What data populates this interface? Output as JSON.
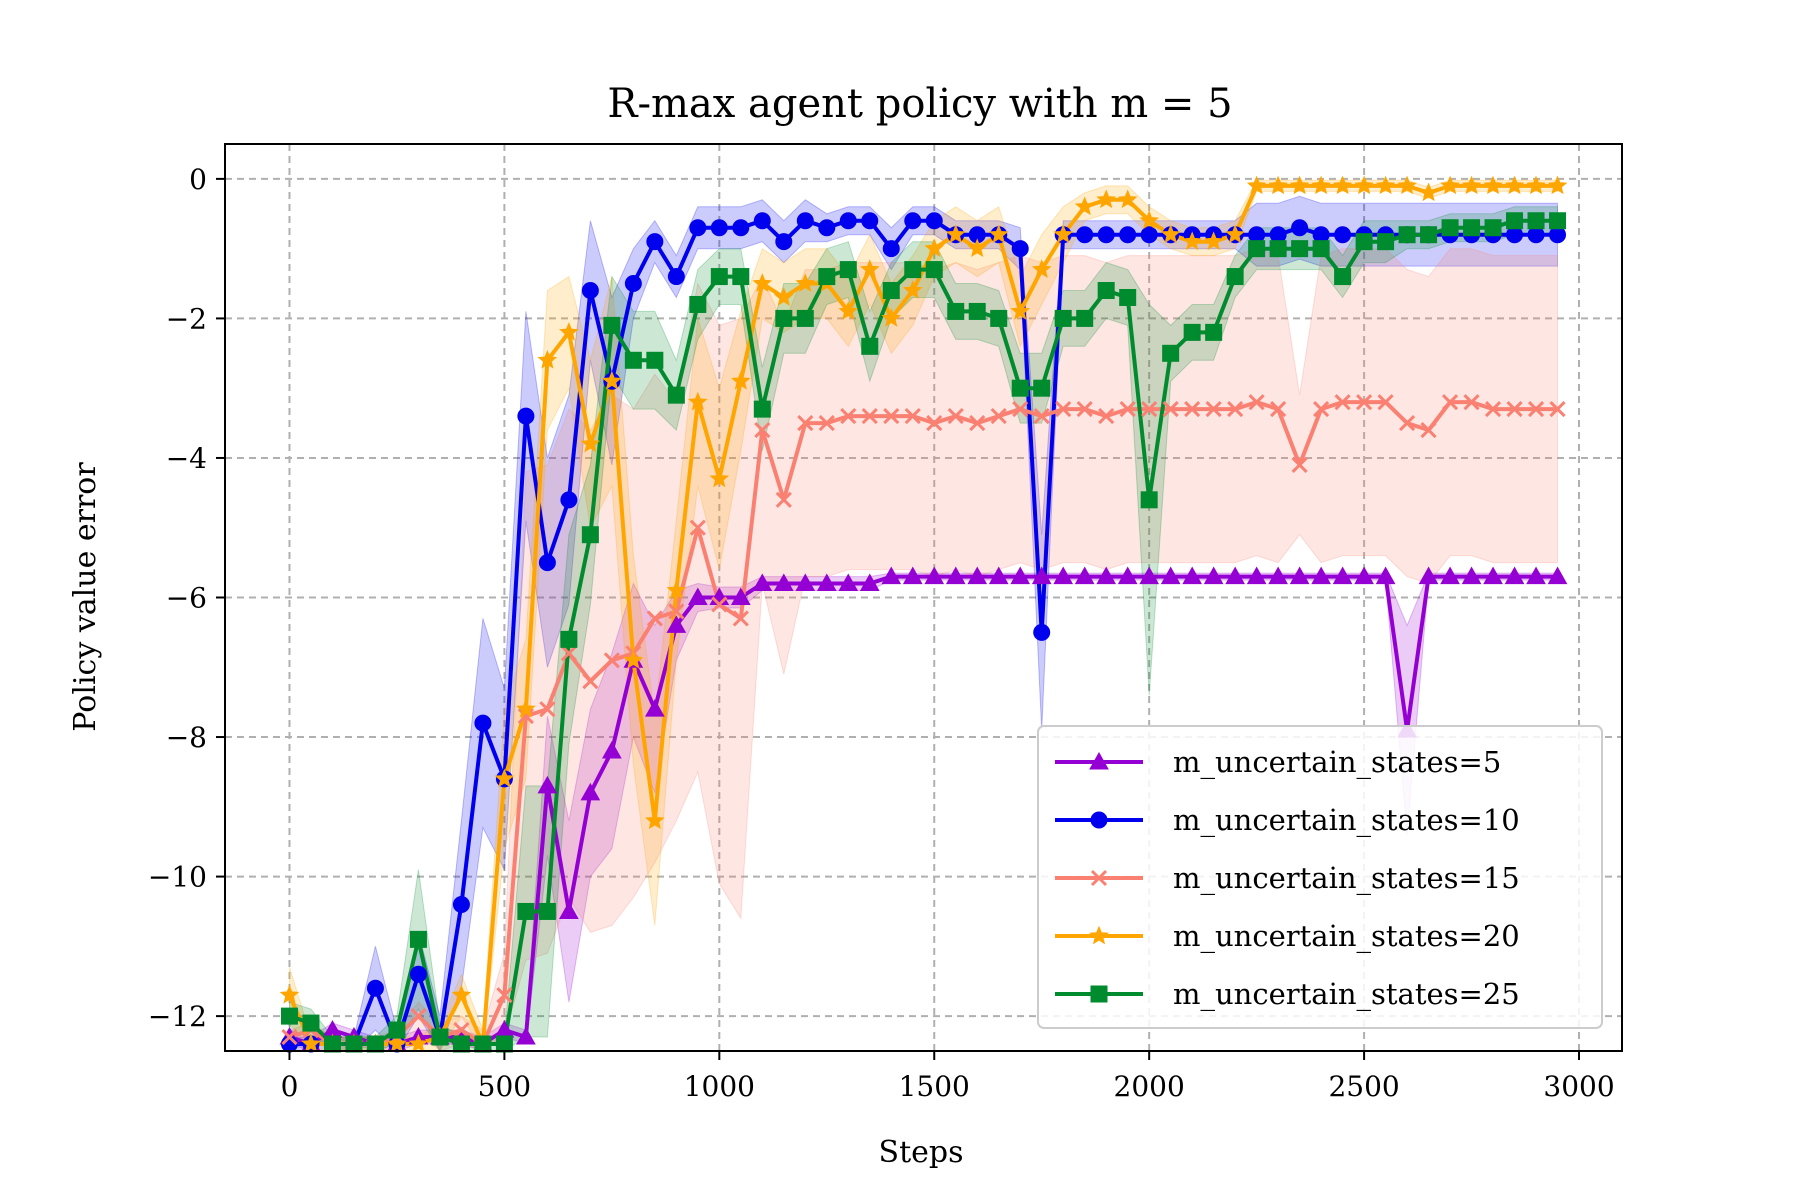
{
  "chart_data": {
    "type": "line",
    "title": "R-max agent policy with m = 5",
    "xlabel": "Steps",
    "ylabel": "Policy value error",
    "xlim": [
      -150,
      3100
    ],
    "ylim": [
      -12.5,
      0.5
    ],
    "xticks": [
      0,
      500,
      1000,
      1500,
      2000,
      2500,
      3000
    ],
    "xtick_labels": [
      "0",
      "500",
      "1000",
      "1500",
      "2000",
      "2500",
      "3000"
    ],
    "yticks": [
      0,
      -2,
      -4,
      -6,
      -8,
      -10,
      -12
    ],
    "ytick_labels": [
      "0",
      "−2",
      "−4",
      "−6",
      "−8",
      "−10",
      "−12"
    ],
    "grid": true,
    "grid_style": "dashed",
    "legend_position": "lower-right",
    "x": [
      0,
      50,
      100,
      150,
      200,
      250,
      300,
      350,
      400,
      450,
      500,
      550,
      600,
      650,
      700,
      750,
      800,
      850,
      900,
      950,
      1000,
      1050,
      1100,
      1150,
      1200,
      1250,
      1300,
      1350,
      1400,
      1450,
      1500,
      1550,
      1600,
      1650,
      1700,
      1750,
      1800,
      1850,
      1900,
      1950,
      2000,
      2050,
      2100,
      2150,
      2200,
      2250,
      2300,
      2350,
      2400,
      2450,
      2500,
      2550,
      2600,
      2650,
      2700,
      2750,
      2800,
      2850,
      2900,
      2950
    ],
    "series": [
      {
        "name": "m_uncertain_states=5",
        "color": "#9400D3",
        "marker": "triangle",
        "values": [
          -12.3,
          -12.4,
          -12.2,
          -12.3,
          -12.4,
          -12.4,
          -12.3,
          -12.3,
          -12.3,
          -12.4,
          -12.2,
          -12.3,
          -8.7,
          -10.5,
          -8.8,
          -8.2,
          -6.9,
          -7.6,
          -6.4,
          -6.0,
          -6.0,
          -6.0,
          -5.8,
          -5.8,
          -5.8,
          -5.8,
          -5.8,
          -5.8,
          -5.7,
          -5.7,
          -5.7,
          -5.7,
          -5.7,
          -5.7,
          -5.7,
          -5.7,
          -5.7,
          -5.7,
          -5.7,
          -5.7,
          -5.7,
          -5.7,
          -5.7,
          -5.7,
          -5.7,
          -5.7,
          -5.7,
          -5.7,
          -5.7,
          -5.7,
          -5.7,
          -5.7,
          -7.9,
          -5.7,
          -5.7,
          -5.7,
          -5.7,
          -5.7,
          -5.7,
          -5.7
        ],
        "band": [
          0.1,
          0.1,
          0.1,
          0.1,
          0.1,
          0.1,
          0.1,
          0.1,
          0.1,
          0.1,
          0.1,
          0.1,
          1.0,
          1.3,
          1.2,
          1.4,
          1.1,
          1.2,
          0.5,
          0.2,
          0.15,
          0.15,
          0.1,
          0.1,
          0.1,
          0.1,
          0.1,
          0.1,
          0.05,
          0.05,
          0.05,
          0.05,
          0.05,
          0.05,
          0.05,
          0.05,
          0.05,
          0.05,
          0.05,
          0.05,
          0.05,
          0.05,
          0.05,
          0.05,
          0.05,
          0.05,
          0.05,
          0.05,
          0.05,
          0.05,
          0.05,
          0.05,
          1.5,
          0.05,
          0.05,
          0.05,
          0.05,
          0.05,
          0.05,
          0.05
        ]
      },
      {
        "name": "m_uncertain_states=10",
        "color": "#0000EE",
        "marker": "circle",
        "values": [
          -12.4,
          -12.4,
          -12.4,
          -12.4,
          -11.6,
          -12.4,
          -11.4,
          -12.3,
          -10.4,
          -7.8,
          -8.6,
          -3.4,
          -5.5,
          -4.6,
          -1.6,
          -2.9,
          -1.5,
          -0.9,
          -1.4,
          -0.7,
          -0.7,
          -0.7,
          -0.6,
          -0.9,
          -0.6,
          -0.7,
          -0.6,
          -0.6,
          -1.0,
          -0.6,
          -0.6,
          -0.8,
          -0.8,
          -0.8,
          -1.0,
          -6.5,
          -0.8,
          -0.8,
          -0.8,
          -0.8,
          -0.8,
          -0.8,
          -0.8,
          -0.8,
          -0.8,
          -0.8,
          -0.8,
          -0.7,
          -0.8,
          -0.8,
          -0.8,
          -0.8,
          -0.8,
          -0.8,
          -0.8,
          -0.8,
          -0.8,
          -0.8,
          -0.8,
          -0.8
        ],
        "band": [
          0.1,
          0.1,
          0.1,
          0.1,
          0.6,
          0.2,
          0.6,
          0.3,
          1.2,
          1.5,
          1.3,
          1.5,
          1.5,
          1.5,
          1.0,
          1.2,
          0.5,
          0.3,
          0.3,
          0.3,
          0.3,
          0.3,
          0.3,
          0.3,
          0.3,
          0.2,
          0.2,
          0.2,
          0.3,
          0.2,
          0.2,
          0.2,
          0.2,
          0.2,
          0.3,
          1.4,
          0.2,
          0.2,
          0.2,
          0.2,
          0.2,
          0.2,
          0.2,
          0.2,
          0.2,
          0.45,
          0.45,
          0.45,
          0.45,
          0.45,
          0.45,
          0.45,
          0.45,
          0.45,
          0.45,
          0.45,
          0.45,
          0.45,
          0.45,
          0.45
        ]
      },
      {
        "name": "m_uncertain_states=15",
        "color": "#FA8072",
        "marker": "x",
        "values": [
          -12.3,
          -12.2,
          -12.4,
          -12.4,
          -12.4,
          -12.3,
          -12.0,
          -12.3,
          -12.2,
          -12.4,
          -11.7,
          -7.7,
          -7.6,
          -6.8,
          -7.2,
          -6.9,
          -6.8,
          -6.3,
          -6.2,
          -5.0,
          -6.1,
          -6.3,
          -3.6,
          -4.6,
          -3.5,
          -3.5,
          -3.4,
          -3.4,
          -3.4,
          -3.4,
          -3.5,
          -3.4,
          -3.5,
          -3.4,
          -3.3,
          -3.4,
          -3.3,
          -3.3,
          -3.4,
          -3.3,
          -3.3,
          -3.3,
          -3.3,
          -3.3,
          -3.3,
          -3.2,
          -3.3,
          -4.1,
          -3.3,
          -3.2,
          -3.2,
          -3.2,
          -3.5,
          -3.6,
          -3.2,
          -3.2,
          -3.3,
          -3.3,
          -3.3,
          -3.3
        ],
        "band": [
          0.1,
          0.1,
          0.1,
          0.1,
          0.1,
          0.1,
          0.2,
          0.2,
          0.2,
          0.2,
          0.6,
          3.5,
          3.5,
          3.5,
          3.6,
          3.8,
          3.5,
          3.5,
          3.0,
          3.5,
          4.0,
          4.3,
          2.2,
          2.5,
          2.2,
          2.2,
          2.2,
          2.2,
          2.2,
          2.2,
          2.2,
          2.2,
          2.2,
          2.2,
          2.2,
          2.2,
          2.2,
          2.2,
          2.2,
          2.2,
          2.2,
          2.2,
          2.2,
          2.2,
          2.2,
          2.2,
          2.2,
          1.0,
          2.2,
          2.2,
          2.2,
          2.2,
          2.2,
          2.2,
          2.2,
          2.2,
          2.2,
          2.2,
          2.2,
          2.2
        ]
      },
      {
        "name": "m_uncertain_states=20",
        "color": "#FFA500",
        "marker": "star",
        "values": [
          -11.7,
          -12.4,
          -12.4,
          -12.4,
          -12.4,
          -12.4,
          -12.4,
          -12.3,
          -11.7,
          -12.4,
          -8.6,
          -7.6,
          -2.6,
          -2.2,
          -3.8,
          -2.9,
          -6.9,
          -9.2,
          -5.9,
          -3.2,
          -4.3,
          -2.9,
          -1.5,
          -1.7,
          -1.5,
          -1.5,
          -1.9,
          -1.3,
          -2.0,
          -1.6,
          -1.0,
          -0.8,
          -1.0,
          -0.8,
          -1.9,
          -1.3,
          -0.8,
          -0.4,
          -0.3,
          -0.3,
          -0.6,
          -0.8,
          -0.9,
          -0.9,
          -0.8,
          -0.1,
          -0.1,
          -0.1,
          -0.1,
          -0.1,
          -0.1,
          -0.1,
          -0.1,
          -0.2,
          -0.1,
          -0.1,
          -0.1,
          -0.1,
          -0.1,
          -0.1
        ],
        "band": [
          0.4,
          0.1,
          0.1,
          0.1,
          0.1,
          0.1,
          0.1,
          0.2,
          0.3,
          0.2,
          1.0,
          1.0,
          1.0,
          0.8,
          1.2,
          1.5,
          1.5,
          1.5,
          1.0,
          1.2,
          1.3,
          1.0,
          0.5,
          0.5,
          0.5,
          0.5,
          0.5,
          0.5,
          0.5,
          0.5,
          0.4,
          0.4,
          0.4,
          0.4,
          0.5,
          0.5,
          0.4,
          0.2,
          0.2,
          0.2,
          0.2,
          0.2,
          0.2,
          0.2,
          0.2,
          0.08,
          0.08,
          0.08,
          0.08,
          0.08,
          0.08,
          0.08,
          0.08,
          0.08,
          0.08,
          0.08,
          0.08,
          0.08,
          0.08,
          0.08
        ]
      },
      {
        "name": "m_uncertain_states=25",
        "color": "#008B2E",
        "marker": "square",
        "values": [
          -12.0,
          -12.1,
          -12.4,
          -12.4,
          -12.4,
          -12.2,
          -10.9,
          -12.3,
          -12.4,
          -12.4,
          -12.4,
          -10.5,
          -10.5,
          -6.6,
          -5.1,
          -2.1,
          -2.6,
          -2.6,
          -3.1,
          -1.8,
          -1.4,
          -1.4,
          -3.3,
          -2.0,
          -2.0,
          -1.4,
          -1.3,
          -2.4,
          -1.6,
          -1.3,
          -1.3,
          -1.9,
          -1.9,
          -2.0,
          -3.0,
          -3.0,
          -2.0,
          -2.0,
          -1.6,
          -1.7,
          -4.6,
          -2.5,
          -2.2,
          -2.2,
          -1.4,
          -1.0,
          -1.0,
          -1.0,
          -1.0,
          -1.4,
          -0.9,
          -0.9,
          -0.8,
          -0.8,
          -0.7,
          -0.7,
          -0.7,
          -0.6,
          -0.6,
          -0.6
        ],
        "band": [
          0.2,
          0.2,
          0.1,
          0.1,
          0.1,
          0.2,
          1.0,
          0.2,
          0.1,
          0.1,
          0.1,
          1.8,
          1.8,
          1.5,
          1.0,
          0.7,
          0.7,
          0.7,
          0.5,
          0.5,
          0.4,
          0.4,
          0.6,
          0.5,
          0.5,
          0.4,
          0.4,
          0.5,
          0.4,
          0.4,
          0.4,
          0.4,
          0.4,
          0.4,
          0.5,
          0.5,
          0.4,
          0.4,
          0.4,
          0.4,
          2.8,
          0.4,
          0.4,
          0.4,
          0.3,
          0.3,
          0.3,
          0.3,
          0.3,
          0.3,
          0.3,
          0.3,
          0.2,
          0.2,
          0.2,
          0.2,
          0.2,
          0.2,
          0.2,
          0.2
        ]
      }
    ]
  }
}
